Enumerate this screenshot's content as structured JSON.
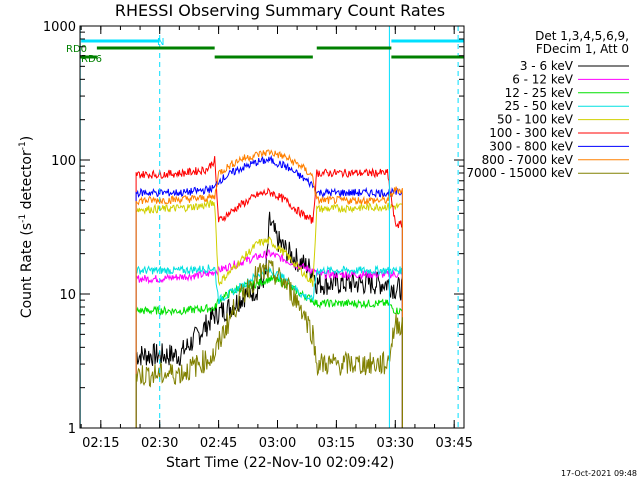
{
  "chart_data": {
    "type": "line",
    "title": "RHESSI Observing Summary Count Rates",
    "xlabel": "Start Time (22-Nov-10 02:09:42)",
    "ylabel": "Count Rate (s",
    "ylabel_sup1": "-1",
    "ylabel_mid": " detector",
    "ylabel_sup2": "-1",
    "ylabel_end": ")",
    "y_scale": "log",
    "ylim": [
      1,
      1000
    ],
    "y_ticks": [
      {
        "value": 1,
        "label": "1"
      },
      {
        "value": 10,
        "label": "10"
      },
      {
        "value": 100,
        "label": "100"
      },
      {
        "value": 1000,
        "label": "1000"
      }
    ],
    "xlim": [
      "02:09:42",
      "03:47:30"
    ],
    "x_ticks": [
      "02:15",
      "02:30",
      "02:45",
      "03:00",
      "03:15",
      "03:30",
      "03:45"
    ],
    "legend_header": [
      "Det 1,3,4,5,6,9,",
      "FDecim 1, Att 0"
    ],
    "legend_position": "right",
    "series": [
      {
        "name": "3 - 6 keV",
        "color": "#000000",
        "x": [
          "02:24:00",
          "02:29:00",
          "02:32:00",
          "02:35:00",
          "02:40:00",
          "02:44:00",
          "02:48:00",
          "02:52:00",
          "02:55:00",
          "02:57:00",
          "02:58:00",
          "03:00:00",
          "03:03:00",
          "03:06:00",
          "03:09:00",
          "03:10:00",
          "03:15:00",
          "03:20:00",
          "03:25:00",
          "03:28:00",
          "03:30:00",
          "03:32:00"
        ],
        "y": [
          3.5,
          3.5,
          3.5,
          3.5,
          5,
          7,
          8,
          10,
          11,
          14,
          35,
          25,
          20,
          17,
          15,
          12,
          12,
          12,
          12,
          12,
          11,
          11
        ]
      },
      {
        "name": "6 - 12 keV",
        "color": "#ff00ff",
        "x": [
          "02:24:00",
          "02:30:00",
          "02:36:00",
          "02:42:00",
          "02:45:00",
          "02:50:00",
          "02:55:00",
          "02:58:00",
          "03:02:00",
          "03:06:00",
          "03:09:00",
          "03:10:00",
          "03:20:00",
          "03:28:00",
          "03:30:00",
          "03:32:00"
        ],
        "y": [
          13,
          13,
          13.5,
          14,
          15,
          17,
          19,
          20,
          18,
          16,
          15,
          14,
          14,
          14,
          14,
          14
        ]
      },
      {
        "name": "12 - 25 keV",
        "color": "#00e000",
        "x": [
          "02:24:00",
          "02:30:00",
          "02:36:00",
          "02:42:00",
          "02:44:00",
          "02:45:00",
          "02:50:00",
          "02:55:00",
          "02:58:00",
          "03:02:00",
          "03:06:00",
          "03:09:00",
          "03:10:00",
          "03:20:00",
          "03:28:00",
          "03:30:00",
          "03:32:00"
        ],
        "y": [
          7.5,
          7.5,
          7.5,
          7.8,
          7.8,
          9,
          11,
          12,
          13,
          12,
          10,
          9,
          8.5,
          8.5,
          8.5,
          7.5,
          7.5
        ]
      },
      {
        "name": "25 - 50 keV",
        "color": "#00e0e0",
        "x": [
          "02:24:00",
          "02:30:00",
          "02:36:00",
          "02:42:00",
          "02:44:00",
          "02:45:00",
          "02:50:00",
          "02:55:00",
          "02:58:00",
          "03:02:00",
          "03:06:00",
          "03:09:00",
          "03:10:00",
          "03:20:00",
          "03:28:00",
          "03:30:00",
          "03:32:00"
        ],
        "y": [
          15,
          15,
          15,
          15.5,
          15.5,
          9,
          11,
          14,
          15,
          13,
          10,
          9,
          15,
          15,
          15,
          15,
          15
        ]
      },
      {
        "name": "50 - 100 keV",
        "color": "#d0d000",
        "x": [
          "02:24:00",
          "02:30:00",
          "02:36:00",
          "02:42:00",
          "02:44:00",
          "02:45:00",
          "02:50:00",
          "02:55:00",
          "02:58:00",
          "03:02:00",
          "03:06:00",
          "03:09:00",
          "03:10:00",
          "03:20:00",
          "03:28:00",
          "03:30:00",
          "03:32:00"
        ],
        "y": [
          43,
          43,
          44,
          46,
          48,
          12,
          17,
          24,
          25,
          20,
          15,
          12,
          43,
          44,
          45,
          45,
          45
        ]
      },
      {
        "name": "100 - 300 keV",
        "color": "#ff0000",
        "x": [
          "02:24:00",
          "02:30:00",
          "02:36:00",
          "02:42:00",
          "02:44:00",
          "02:45:00",
          "02:50:00",
          "02:55:00",
          "02:58:00",
          "03:02:00",
          "03:06:00",
          "03:09:00",
          "03:10:00",
          "03:20:00",
          "03:28:00",
          "03:30:00",
          "03:32:00"
        ],
        "y": [
          78,
          78,
          80,
          85,
          100,
          35,
          45,
          55,
          58,
          50,
          40,
          35,
          80,
          80,
          80,
          33,
          33
        ]
      },
      {
        "name": "300 - 800 keV",
        "color": "#0000ff",
        "x": [
          "02:24:00",
          "02:30:00",
          "02:36:00",
          "02:42:00",
          "02:44:00",
          "02:45:00",
          "02:50:00",
          "02:55:00",
          "02:58:00",
          "03:02:00",
          "03:06:00",
          "03:09:00",
          "03:10:00",
          "03:20:00",
          "03:28:00",
          "03:30:00",
          "03:32:00"
        ],
        "y": [
          57,
          57,
          57,
          60,
          62,
          70,
          85,
          97,
          100,
          90,
          75,
          65,
          57,
          57,
          57,
          57,
          57
        ]
      },
      {
        "name": "800 - 7000 keV",
        "color": "#ff8000",
        "x": [
          "02:24:00",
          "02:30:00",
          "02:36:00",
          "02:42:00",
          "02:44:00",
          "02:45:00",
          "02:50:00",
          "02:55:00",
          "02:58:00",
          "03:02:00",
          "03:06:00",
          "03:09:00",
          "03:10:00",
          "03:20:00",
          "03:28:00",
          "03:30:00",
          "03:32:00"
        ],
        "y": [
          50,
          50,
          51,
          52,
          53,
          80,
          100,
          110,
          115,
          105,
          90,
          75,
          50,
          50,
          50,
          60,
          60
        ]
      },
      {
        "name": "7000 - 15000 keV",
        "color": "#808000",
        "x": [
          "02:24:00",
          "02:30:00",
          "02:36:00",
          "02:40:00",
          "02:44:00",
          "02:46:00",
          "02:50:00",
          "02:55:00",
          "02:58:00",
          "03:02:00",
          "03:06:00",
          "03:09:00",
          "03:10:00",
          "03:20:00",
          "03:28:00",
          "03:30:00",
          "03:32:00"
        ],
        "y": [
          2.5,
          2.5,
          2.6,
          3,
          3.5,
          5,
          9,
          14,
          15,
          12,
          8,
          5,
          3,
          3,
          3,
          6,
          6
        ]
      }
    ],
    "top_bars": [
      {
        "label": "N",
        "color": "#00e0ff",
        "segments": [
          [
            "02:10:00",
            "02:30:00"
          ],
          [
            "03:29:00",
            "03:47:30"
          ]
        ]
      },
      {
        "label": "RD0",
        "color": "#008000",
        "segments": [
          [
            "02:14:00",
            "02:44:00"
          ],
          [
            "03:10:00",
            "03:29:00"
          ]
        ]
      },
      {
        "label": "RD6",
        "color": "#008000",
        "segments": [
          [
            "02:09:42",
            "02:14:00"
          ],
          [
            "02:44:00",
            "03:09:00"
          ],
          [
            "03:29:00",
            "03:47:30"
          ]
        ]
      }
    ],
    "vertical_markers": [
      {
        "time": "02:09:45",
        "style": "solid",
        "color": "#00e0ff"
      },
      {
        "time": "02:30:00",
        "style": "dashed",
        "color": "#00e0ff"
      },
      {
        "time": "03:28:30",
        "style": "solid",
        "color": "#00e0ff"
      },
      {
        "time": "03:46:00",
        "style": "dashed",
        "color": "#00e0ff"
      }
    ],
    "grid": false
  },
  "footer": {
    "timestamp": "17-Oct-2021 09:48"
  }
}
